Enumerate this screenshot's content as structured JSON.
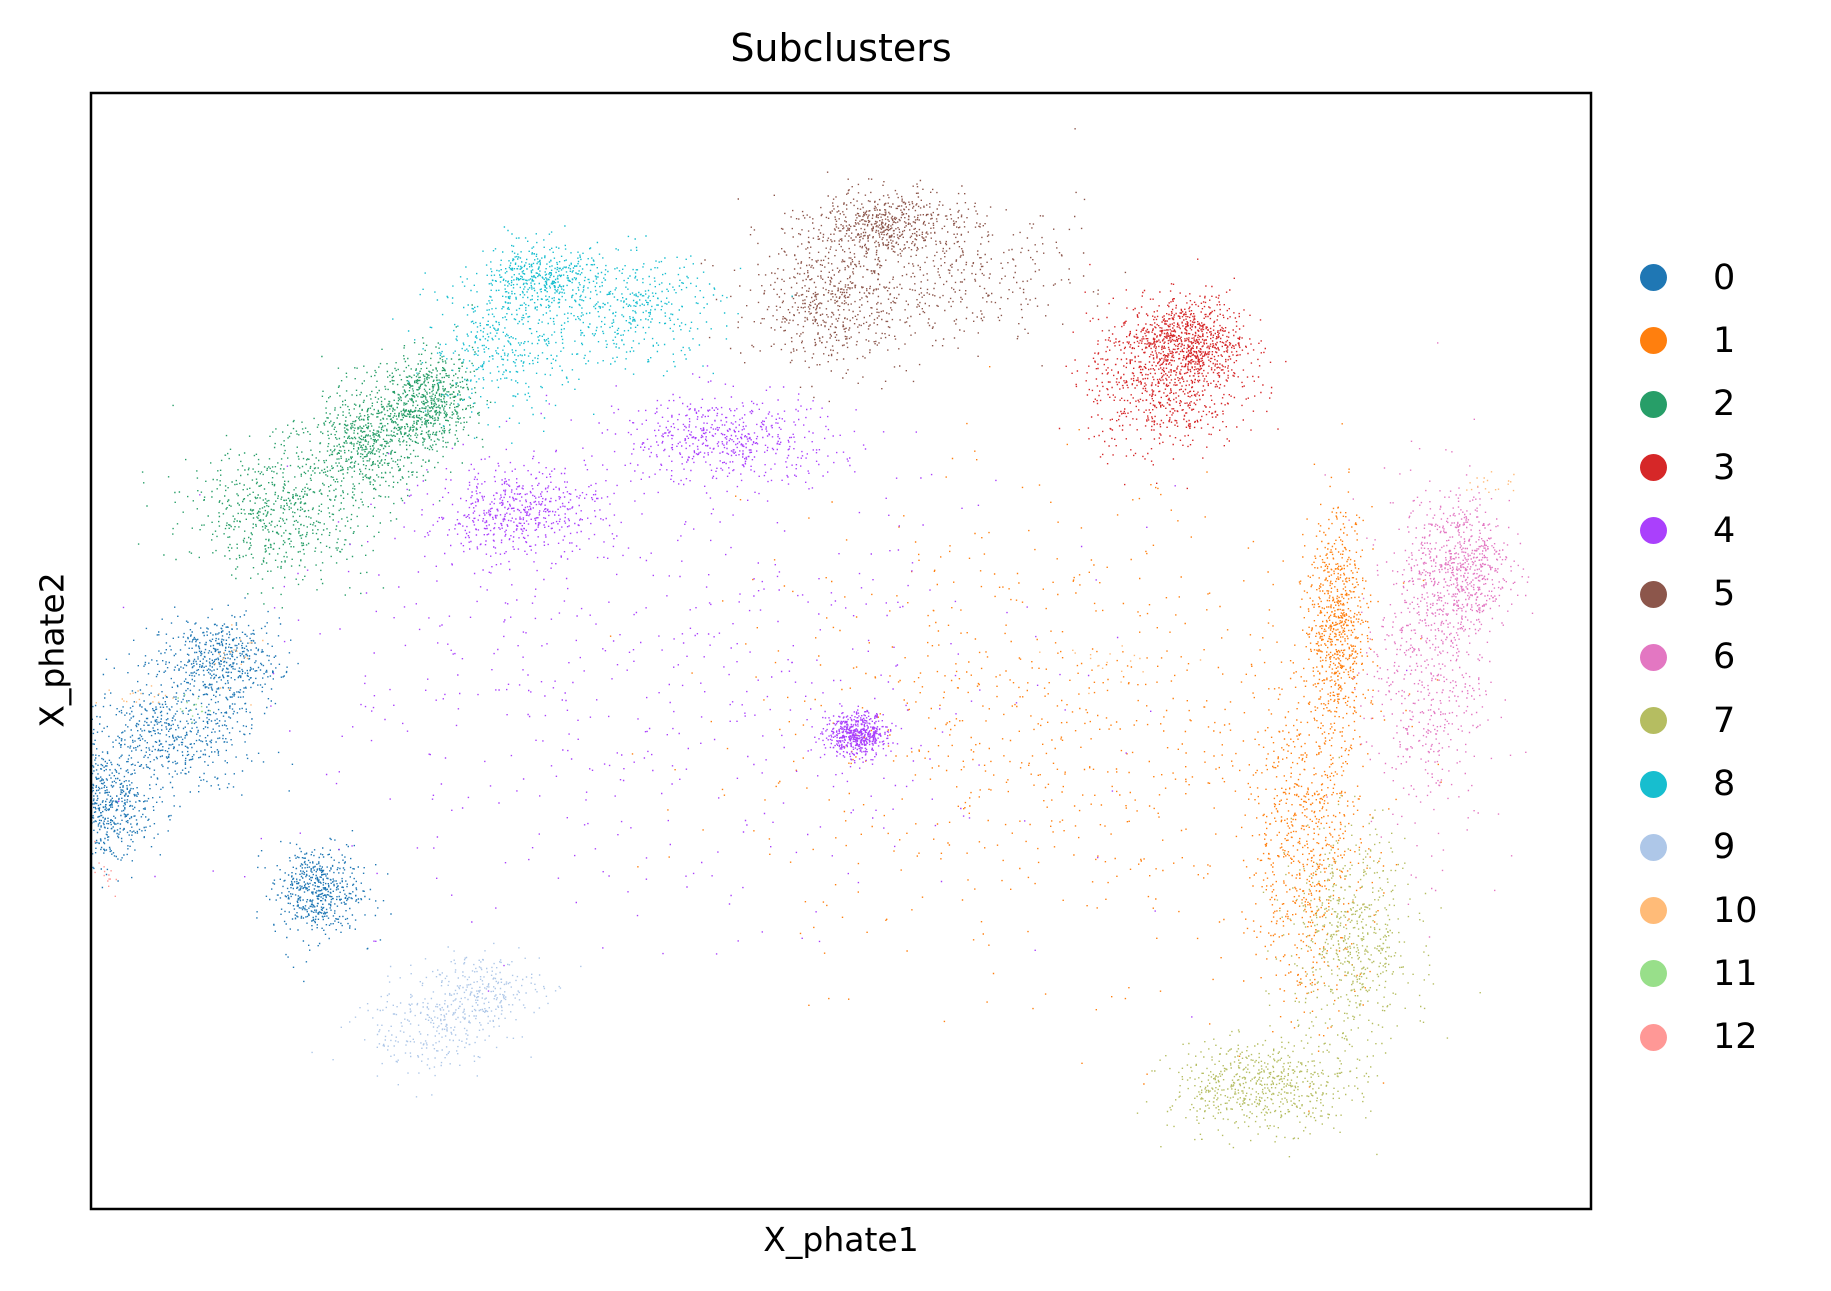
{
  "chart_data": {
    "type": "scatter",
    "title": "Subclusters",
    "xlabel": "X_phate1",
    "ylabel": "X_phate2",
    "xticks": [],
    "yticks": [],
    "grid": false,
    "legend_position": "right",
    "series": [
      {
        "name": "0",
        "color": "#1f77b4",
        "approx_count": 9000,
        "regions": [
          [
            -0.9,
            -0.15,
            0.06,
            0.05
          ],
          [
            -0.83,
            -0.02,
            0.04,
            0.04
          ],
          [
            -0.7,
            -0.43,
            0.03,
            0.04
          ],
          [
            -0.98,
            -0.28,
            0.03,
            0.05
          ]
        ]
      },
      {
        "name": "1",
        "color": "#ff7f0e",
        "approx_count": 9000,
        "regions": [
          [
            0.66,
            0.05,
            0.02,
            0.1
          ],
          [
            0.62,
            -0.35,
            0.04,
            0.14
          ],
          [
            0.28,
            -0.15,
            0.2,
            0.2
          ]
        ]
      },
      {
        "name": "2",
        "color": "#279e68",
        "approx_count": 8000,
        "regions": [
          [
            -0.75,
            0.25,
            0.06,
            0.06
          ],
          [
            -0.63,
            0.38,
            0.04,
            0.05
          ],
          [
            -0.55,
            0.45,
            0.03,
            0.04
          ]
        ]
      },
      {
        "name": "3",
        "color": "#d62728",
        "approx_count": 6000,
        "regions": [
          [
            0.43,
            0.48,
            0.05,
            0.06
          ],
          [
            0.46,
            0.56,
            0.04,
            0.04
          ]
        ]
      },
      {
        "name": "4",
        "color": "#aa40fc",
        "approx_count": 9000,
        "regions": [
          [
            -0.43,
            0.25,
            0.06,
            0.04
          ],
          [
            -0.15,
            0.38,
            0.07,
            0.04
          ],
          [
            -0.25,
            -0.05,
            0.28,
            0.2
          ],
          [
            0.02,
            -0.15,
            0.02,
            0.02
          ]
        ]
      },
      {
        "name": "5",
        "color": "#8c564b",
        "approx_count": 6000,
        "regions": [
          [
            0.06,
            0.77,
            0.05,
            0.03
          ],
          [
            0.12,
            0.68,
            0.1,
            0.06
          ],
          [
            -0.02,
            0.62,
            0.05,
            0.06
          ]
        ]
      },
      {
        "name": "6",
        "color": "#e377c2",
        "approx_count": 5000,
        "regions": [
          [
            0.78,
            -0.02,
            0.04,
            0.16
          ],
          [
            0.83,
            0.15,
            0.03,
            0.06
          ]
        ]
      },
      {
        "name": "7",
        "color": "#b5bd61",
        "approx_count": 5000,
        "regions": [
          [
            0.68,
            -0.52,
            0.04,
            0.1
          ],
          [
            0.56,
            -0.78,
            0.06,
            0.04
          ]
        ]
      },
      {
        "name": "8",
        "color": "#17becf",
        "approx_count": 5000,
        "regions": [
          [
            -0.4,
            0.67,
            0.04,
            0.03
          ],
          [
            -0.45,
            0.55,
            0.05,
            0.06
          ],
          [
            -0.28,
            0.62,
            0.06,
            0.05
          ]
        ]
      },
      {
        "name": "9",
        "color": "#aec7e8",
        "approx_count": 2000,
        "regions": [
          [
            -0.55,
            -0.68,
            0.05,
            0.04
          ],
          [
            -0.48,
            -0.6,
            0.04,
            0.03
          ]
        ]
      },
      {
        "name": "10",
        "color": "#ffbb78",
        "approx_count": 300,
        "regions": [
          [
            -0.8,
            -0.02,
            0.02,
            0.03
          ],
          [
            -0.95,
            -0.08,
            0.03,
            0.01
          ],
          [
            0.35,
            -0.02,
            0.06,
            0.02
          ],
          [
            0.87,
            0.3,
            0.02,
            0.01
          ]
        ]
      },
      {
        "name": "11",
        "color": "#98df8a",
        "approx_count": 60,
        "regions": [
          [
            -0.85,
            -0.1,
            0.02,
            0.02
          ]
        ]
      },
      {
        "name": "12",
        "color": "#ff9896",
        "approx_count": 60,
        "regions": [
          [
            -0.98,
            -0.4,
            0.01,
            0.02
          ]
        ]
      }
    ]
  }
}
